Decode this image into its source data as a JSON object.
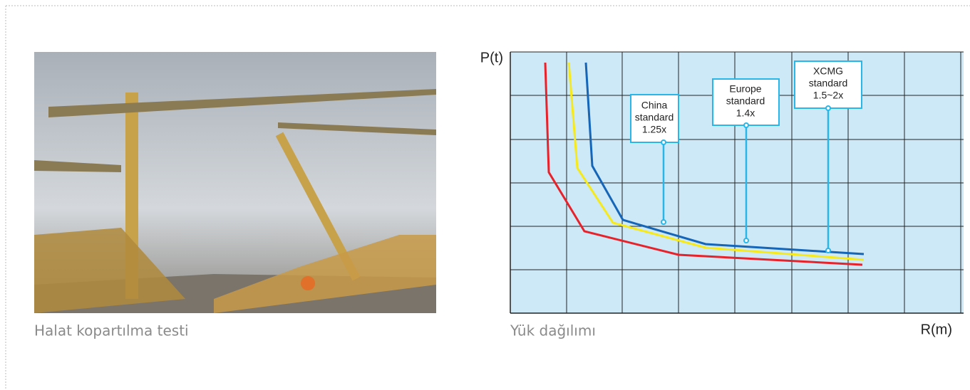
{
  "photo_panel": {
    "caption": "Halat kopartılma testi"
  },
  "chart_panel": {
    "caption": "Yük dağılımı",
    "y_axis_label": "P(t)",
    "x_axis_label": "R(m)",
    "callouts": [
      {
        "lines": [
          "China",
          "standard",
          "1.25x"
        ]
      },
      {
        "lines": [
          "Europe",
          "standard",
          "1.4x"
        ]
      },
      {
        "lines": [
          "XCMG",
          "standard",
          "1.5~2x"
        ]
      }
    ]
  }
}
